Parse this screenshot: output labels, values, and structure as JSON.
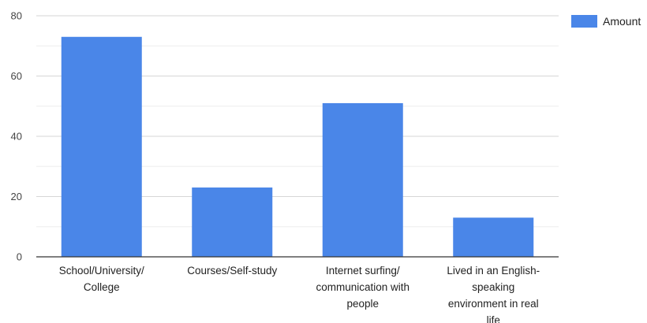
{
  "chart_data": {
    "type": "bar",
    "categories": [
      "School/University/College",
      "Courses/Self-study",
      "Internet surfing/communication with people",
      "Lived in an English-speaking environment in real life"
    ],
    "category_label_lines": [
      [
        "School/University/",
        "College"
      ],
      [
        "Courses/Self-study"
      ],
      [
        "Internet surfing/",
        "communication with",
        "people"
      ],
      [
        "Lived in an English-",
        "speaking",
        "environment in real",
        "life"
      ]
    ],
    "series": [
      {
        "name": "Amount",
        "values": [
          73,
          23,
          51,
          13
        ]
      }
    ],
    "ylim": [
      0,
      80
    ],
    "yticks": [
      0,
      20,
      40,
      60,
      80
    ],
    "grid": true,
    "legend_position": "top-right",
    "bar_color": "#4a86e8",
    "grid_color": "#d6d6d6",
    "minor_grid_color": "#eeeeee",
    "axis_color": "#333333"
  }
}
